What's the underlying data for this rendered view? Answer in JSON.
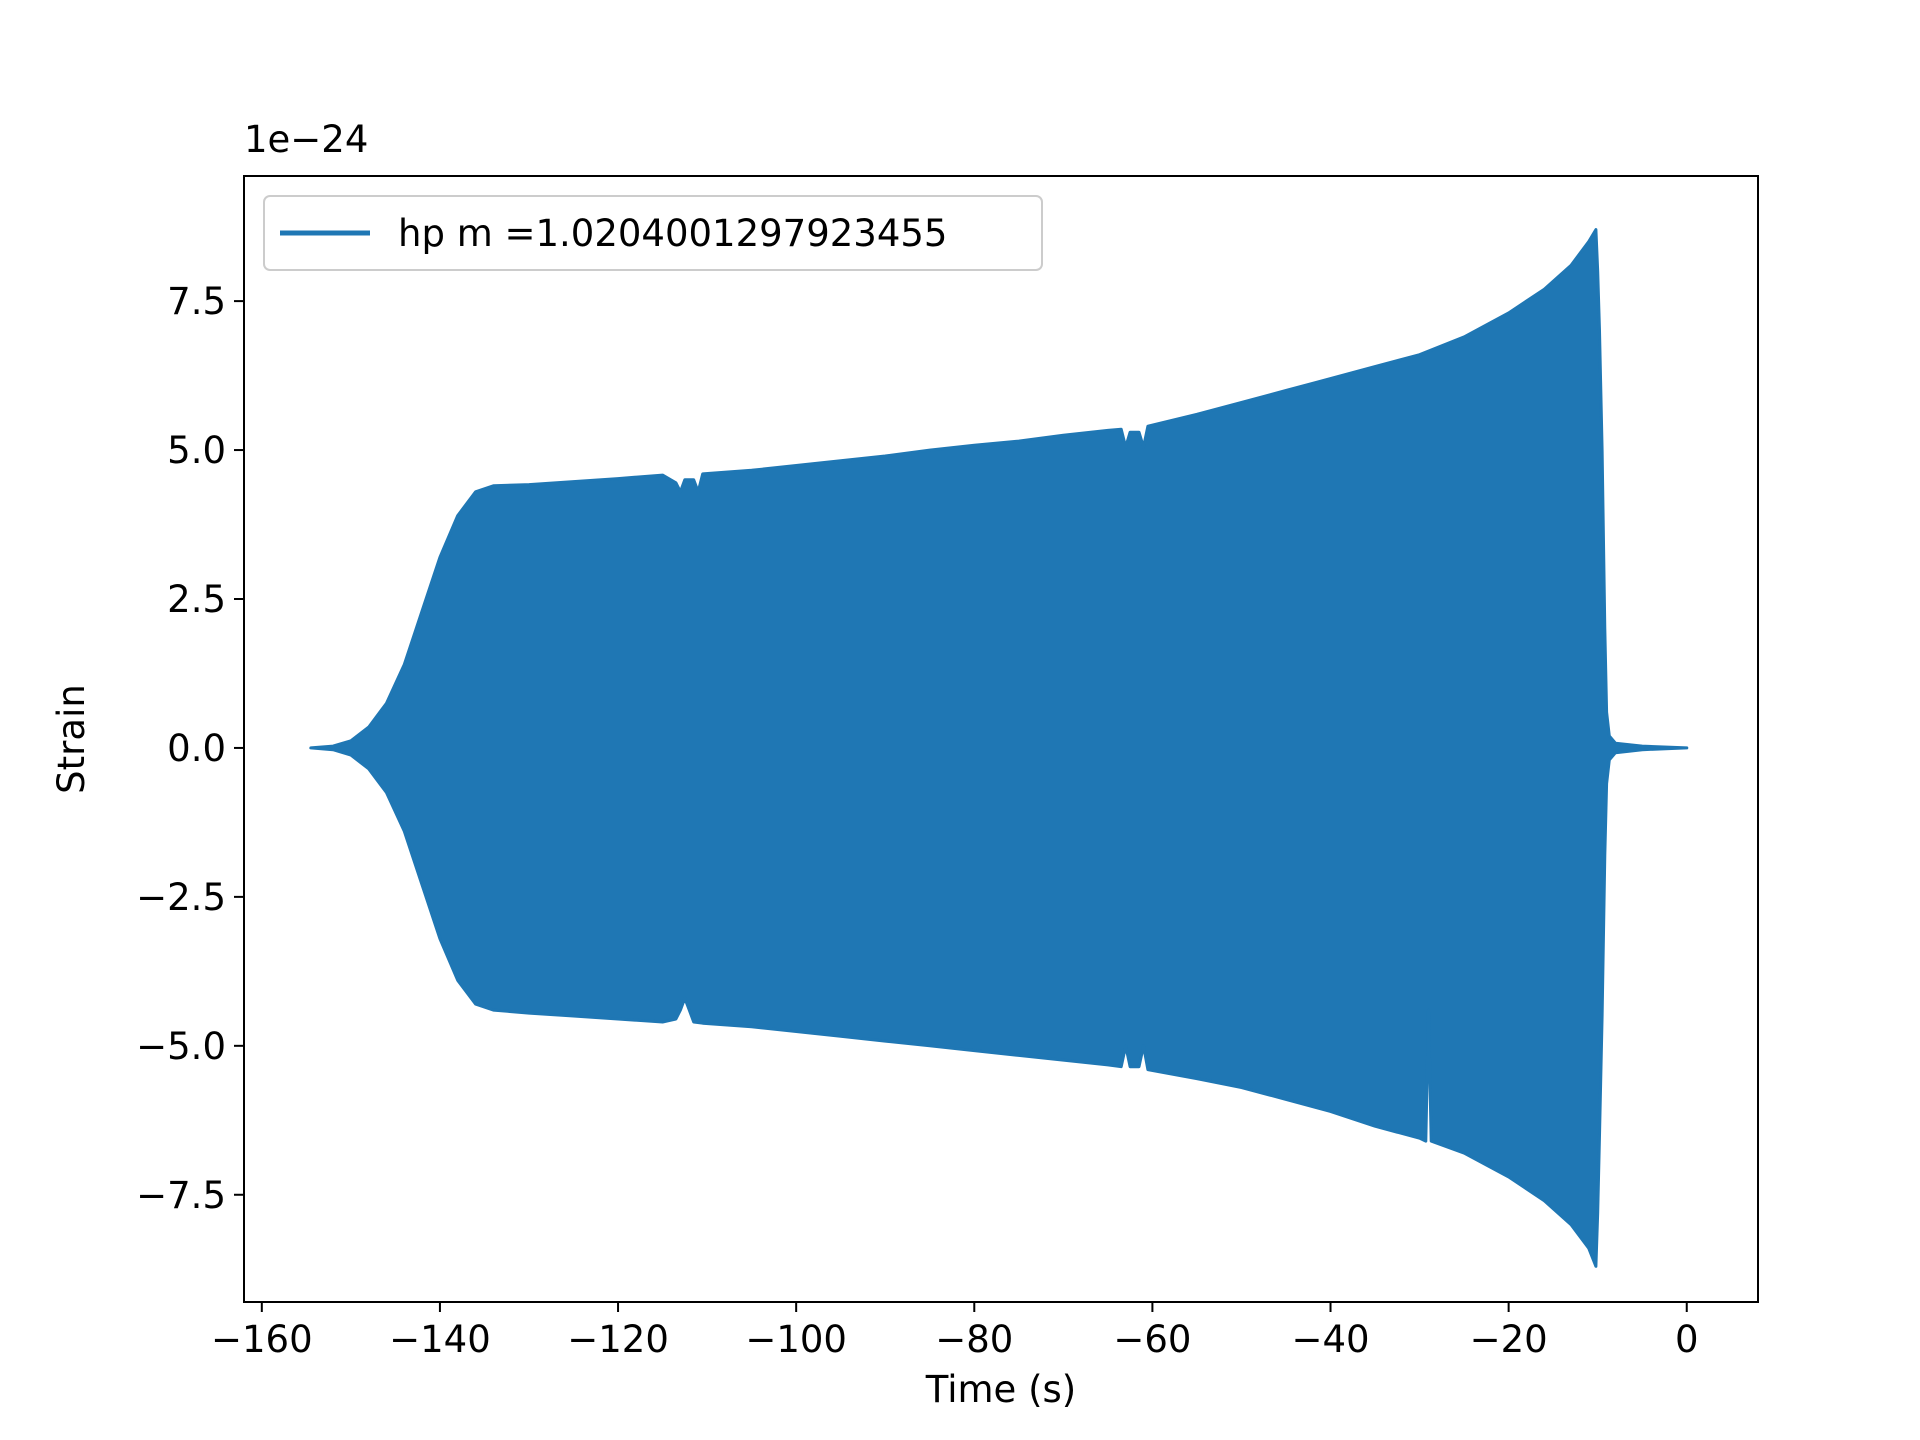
{
  "chart_data": {
    "type": "line",
    "title": "",
    "xlabel": "Time (s)",
    "ylabel": "Strain",
    "y_offset_label": "1e−24",
    "xlim": [
      -162,
      8
    ],
    "ylim": [
      -9.3,
      9.6
    ],
    "grid": false,
    "legend_position": "upper-left",
    "x_ticks": [
      {
        "value": -160,
        "label": "−160"
      },
      {
        "value": -140,
        "label": "−140"
      },
      {
        "value": -120,
        "label": "−120"
      },
      {
        "value": -100,
        "label": "−100"
      },
      {
        "value": -80,
        "label": "−80"
      },
      {
        "value": -60,
        "label": "−60"
      },
      {
        "value": -40,
        "label": "−40"
      },
      {
        "value": -20,
        "label": "−20"
      },
      {
        "value": 0,
        "label": "0"
      }
    ],
    "y_ticks": [
      {
        "value": -7.5,
        "label": "−7.5"
      },
      {
        "value": -5.0,
        "label": "−5.0"
      },
      {
        "value": -2.5,
        "label": "−2.5"
      },
      {
        "value": 0.0,
        "label": "0.0"
      },
      {
        "value": 2.5,
        "label": "2.5"
      },
      {
        "value": 5.0,
        "label": "5.0"
      },
      {
        "value": 7.5,
        "label": "7.5"
      }
    ],
    "series": [
      {
        "name": "hp m =1.0204001297923455",
        "color": "#1f77b4",
        "envelope_upper": [
          [
            -154.5,
            0.0
          ],
          [
            -152,
            0.03
          ],
          [
            -150,
            0.12
          ],
          [
            -148,
            0.35
          ],
          [
            -146,
            0.75
          ],
          [
            -144,
            1.4
          ],
          [
            -142,
            2.3
          ],
          [
            -140,
            3.2
          ],
          [
            -138,
            3.9
          ],
          [
            -136,
            4.3
          ],
          [
            -134,
            4.4
          ],
          [
            -130,
            4.42
          ],
          [
            -125,
            4.47
          ],
          [
            -120,
            4.52
          ],
          [
            -115,
            4.58
          ],
          [
            -113.5,
            4.45
          ],
          [
            -113,
            4.3
          ],
          [
            -112.5,
            4.5
          ],
          [
            -111.5,
            4.5
          ],
          [
            -111,
            4.3
          ],
          [
            -110.5,
            4.6
          ],
          [
            -105,
            4.66
          ],
          [
            -100,
            4.74
          ],
          [
            -95,
            4.82
          ],
          [
            -90,
            4.9
          ],
          [
            -85,
            5.0
          ],
          [
            -80,
            5.08
          ],
          [
            -75,
            5.15
          ],
          [
            -70,
            5.25
          ],
          [
            -65,
            5.33
          ],
          [
            -63.5,
            5.35
          ],
          [
            -63,
            5.05
          ],
          [
            -62.5,
            5.3
          ],
          [
            -61.5,
            5.3
          ],
          [
            -61,
            5.05
          ],
          [
            -60.5,
            5.4
          ],
          [
            -55,
            5.6
          ],
          [
            -50,
            5.8
          ],
          [
            -45,
            6.0
          ],
          [
            -40,
            6.2
          ],
          [
            -35,
            6.4
          ],
          [
            -30,
            6.6
          ],
          [
            -25,
            6.9
          ],
          [
            -20,
            7.3
          ],
          [
            -16,
            7.7
          ],
          [
            -13,
            8.1
          ],
          [
            -11,
            8.5
          ],
          [
            -10.2,
            8.7
          ],
          [
            -10,
            8.0
          ],
          [
            -9.8,
            7.0
          ],
          [
            -9.5,
            5.0
          ],
          [
            -9.2,
            2.0
          ],
          [
            -9.0,
            0.6
          ],
          [
            -8.7,
            0.2
          ],
          [
            -8,
            0.08
          ],
          [
            -5,
            0.03
          ],
          [
            0,
            0.0
          ]
        ],
        "envelope_lower": [
          [
            -154.5,
            0.0
          ],
          [
            -152,
            -0.03
          ],
          [
            -150,
            -0.12
          ],
          [
            -148,
            -0.35
          ],
          [
            -146,
            -0.75
          ],
          [
            -144,
            -1.4
          ],
          [
            -142,
            -2.3
          ],
          [
            -140,
            -3.2
          ],
          [
            -138,
            -3.9
          ],
          [
            -136,
            -4.3
          ],
          [
            -134,
            -4.4
          ],
          [
            -130,
            -4.45
          ],
          [
            -125,
            -4.5
          ],
          [
            -120,
            -4.55
          ],
          [
            -115,
            -4.6
          ],
          [
            -113.5,
            -4.55
          ],
          [
            -113,
            -4.4
          ],
          [
            -112.5,
            -4.2
          ],
          [
            -112,
            -4.4
          ],
          [
            -111.5,
            -4.6
          ],
          [
            -110.5,
            -4.62
          ],
          [
            -105,
            -4.68
          ],
          [
            -100,
            -4.76
          ],
          [
            -95,
            -4.84
          ],
          [
            -90,
            -4.92
          ],
          [
            -85,
            -5.0
          ],
          [
            -80,
            -5.08
          ],
          [
            -75,
            -5.16
          ],
          [
            -70,
            -5.24
          ],
          [
            -65,
            -5.32
          ],
          [
            -63.5,
            -5.35
          ],
          [
            -63,
            -5.0
          ],
          [
            -62.5,
            -5.35
          ],
          [
            -61.5,
            -5.35
          ],
          [
            -61,
            -5.0
          ],
          [
            -60.5,
            -5.4
          ],
          [
            -55,
            -5.55
          ],
          [
            -50,
            -5.7
          ],
          [
            -45,
            -5.9
          ],
          [
            -40,
            -6.1
          ],
          [
            -35,
            -6.35
          ],
          [
            -30,
            -6.55
          ],
          [
            -29.3,
            -6.6
          ],
          [
            -29,
            -4.4
          ],
          [
            -28.7,
            -6.6
          ],
          [
            -25,
            -6.8
          ],
          [
            -20,
            -7.2
          ],
          [
            -16,
            -7.6
          ],
          [
            -13,
            -8.0
          ],
          [
            -11,
            -8.4
          ],
          [
            -10.2,
            -8.7
          ],
          [
            -10,
            -7.8
          ],
          [
            -9.8,
            -6.5
          ],
          [
            -9.5,
            -4.5
          ],
          [
            -9.2,
            -1.8
          ],
          [
            -9.0,
            -0.6
          ],
          [
            -8.7,
            -0.2
          ],
          [
            -8,
            -0.08
          ],
          [
            -5,
            -0.03
          ],
          [
            0,
            0.0
          ]
        ]
      }
    ]
  }
}
